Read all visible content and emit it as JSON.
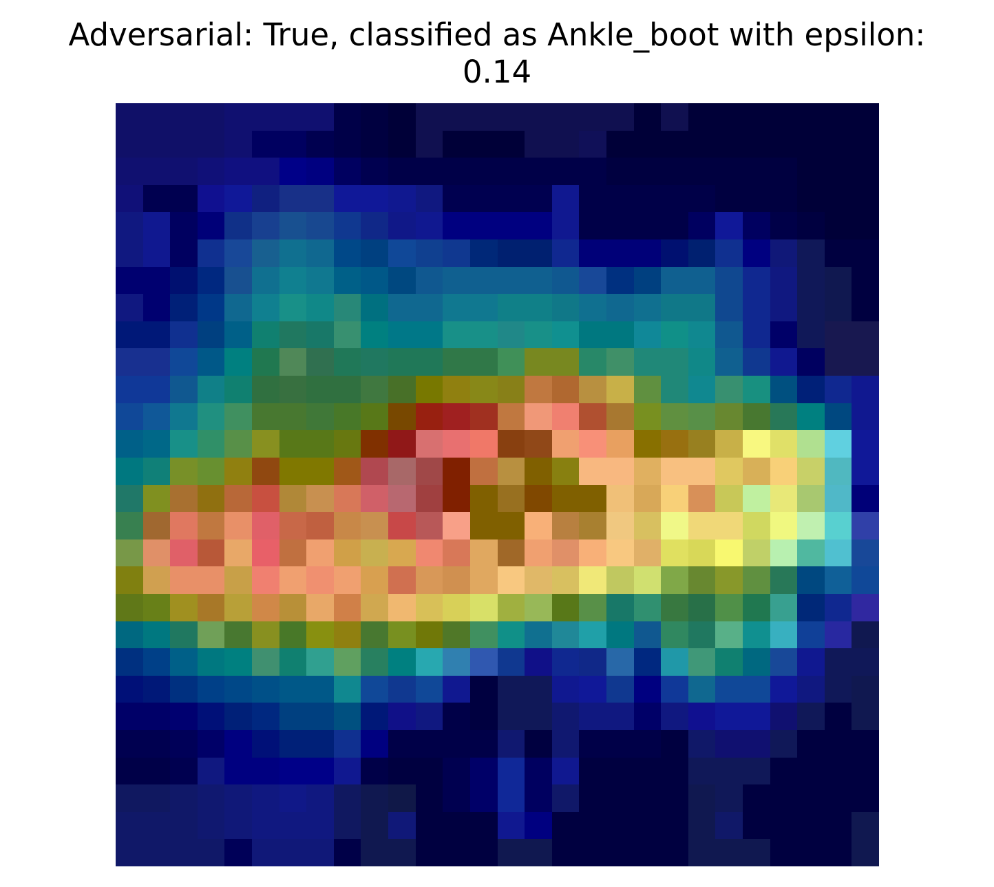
{
  "figure": {
    "title_line1": "Adversarial: True, classified as Ankle_boot with epsilon:",
    "title_line2": "0.14"
  },
  "chart_data": {
    "type": "heatmap",
    "title": "Adversarial: True, classified as Ankle_boot with epsilon: 0.14",
    "predicted_class": "Ankle_boot",
    "adversarial": true,
    "epsilon": 0.14,
    "rows": 28,
    "cols": 28,
    "axes": "off",
    "cells": [
      [
        "#101068",
        "#101068",
        "#101068",
        "#101068",
        "#101070",
        "#101070",
        "#101070",
        "#101070",
        "#000048",
        "#000040",
        "#000038",
        "#101050",
        "#101050",
        "#101050",
        "#101050",
        "#101050",
        "#101050",
        "#101050",
        "#101050",
        "#000038",
        "#101050",
        "#000038",
        "#000038",
        "#000038",
        "#000038",
        "#000038",
        "#000038",
        "#000038"
      ],
      [
        "#101068",
        "#101068",
        "#101068",
        "#101068",
        "#101070",
        "#000060",
        "#000060",
        "#000050",
        "#000048",
        "#000040",
        "#000038",
        "#101050",
        "#000038",
        "#000038",
        "#000038",
        "#101050",
        "#101050",
        "#101058",
        "#000038",
        "#000038",
        "#000038",
        "#000038",
        "#000038",
        "#000038",
        "#000038",
        "#000038",
        "#000038",
        "#000038"
      ],
      [
        "#101070",
        "#101070",
        "#101070",
        "#101078",
        "#101080",
        "#101080",
        "#000088",
        "#000080",
        "#000060",
        "#000050",
        "#000048",
        "#000048",
        "#000048",
        "#000048",
        "#000048",
        "#000048",
        "#000048",
        "#000048",
        "#000040",
        "#000040",
        "#000040",
        "#000040",
        "#000040",
        "#000040",
        "#000040",
        "#000038",
        "#000038",
        "#000038"
      ],
      [
        "#101078",
        "#000050",
        "#000050",
        "#101090",
        "#101898",
        "#102080",
        "#183088",
        "#183088",
        "#101898",
        "#101898",
        "#101890",
        "#101880",
        "#000050",
        "#000050",
        "#000050",
        "#000050",
        "#101890",
        "#000048",
        "#000048",
        "#000048",
        "#000048",
        "#000048",
        "#000040",
        "#000040",
        "#000040",
        "#000038",
        "#000038",
        "#000038"
      ],
      [
        "#101880",
        "#101890",
        "#000060",
        "#000078",
        "#103088",
        "#184090",
        "#185090",
        "#184890",
        "#103890",
        "#102888",
        "#101888",
        "#101890",
        "#000080",
        "#000080",
        "#000080",
        "#000080",
        "#101890",
        "#000048",
        "#000048",
        "#000048",
        "#000048",
        "#000060",
        "#101898",
        "#000060",
        "#000048",
        "#000040",
        "#000038",
        "#000038"
      ],
      [
        "#101880",
        "#101890",
        "#000060",
        "#103090",
        "#184898",
        "#186090",
        "#107090",
        "#106890",
        "#004888",
        "#004080",
        "#104898",
        "#104090",
        "#103890",
        "#002878",
        "#002070",
        "#002070",
        "#102890",
        "#000078",
        "#000078",
        "#000078",
        "#001070",
        "#002070",
        "#103090",
        "#000080",
        "#101878",
        "#101858",
        "#000040",
        "#000040"
      ],
      [
        "#000070",
        "#000070",
        "#001070",
        "#002880",
        "#185090",
        "#107090",
        "#108090",
        "#107890",
        "#006088",
        "#005888",
        "#004880",
        "#105890",
        "#106090",
        "#106090",
        "#106090",
        "#106090",
        "#105890",
        "#184898",
        "#003080",
        "#004080",
        "#106090",
        "#106090",
        "#104890",
        "#102890",
        "#101880",
        "#101858",
        "#101850",
        "#000040"
      ],
      [
        "#101880",
        "#000070",
        "#002078",
        "#003888",
        "#106890",
        "#108090",
        "#189088",
        "#108888",
        "#288878",
        "#007080",
        "#106890",
        "#106890",
        "#107890",
        "#107890",
        "#108088",
        "#108088",
        "#107888",
        "#107090",
        "#106890",
        "#107090",
        "#107888",
        "#107888",
        "#104890",
        "#102890",
        "#101880",
        "#101858",
        "#101850",
        "#000040"
      ],
      [
        "#001878",
        "#001878",
        "#103090",
        "#004080",
        "#006088",
        "#108070",
        "#207860",
        "#187868",
        "#389070",
        "#008080",
        "#007888",
        "#007888",
        "#189088",
        "#189088",
        "#208888",
        "#189088",
        "#109090",
        "#007880",
        "#007880",
        "#108898",
        "#109088",
        "#108890",
        "#105890",
        "#102890",
        "#000068",
        "#101858",
        "#181850",
        "#181850"
      ],
      [
        "#183090",
        "#183090",
        "#104898",
        "#005888",
        "#008080",
        "#207850",
        "#508858",
        "#307050",
        "#207858",
        "#207860",
        "#207858",
        "#207858",
        "#307848",
        "#307848",
        "#409058",
        "#788820",
        "#788820",
        "#288868",
        "#409068",
        "#208878",
        "#208878",
        "#108888",
        "#106090",
        "#103890",
        "#101890",
        "#000060",
        "#181850",
        "#181850"
      ],
      [
        "#103898",
        "#103898",
        "#105890",
        "#108088",
        "#108070",
        "#307040",
        "#387040",
        "#307040",
        "#307040",
        "#407840",
        "#487028",
        "#787800",
        "#908010",
        "#888818",
        "#888018",
        "#c07840",
        "#b06830",
        "#b89040",
        "#c8b048",
        "#609040",
        "#208878",
        "#108890",
        "#389070",
        "#189080",
        "#005080",
        "#002078",
        "#102890",
        "#101890"
      ],
      [
        "#104898",
        "#105898",
        "#107890",
        "#209080",
        "#409060",
        "#487830",
        "#487830",
        "#407838",
        "#487828",
        "#587818",
        "#784800",
        "#982010",
        "#a02020",
        "#a03020",
        "#c07840",
        "#f09878",
        "#f08070",
        "#b05030",
        "#a87830",
        "#789020",
        "#609040",
        "#589048",
        "#688830",
        "#487830",
        "#287858",
        "#008080",
        "#004880",
        "#101890"
      ],
      [
        "#006088",
        "#006888",
        "#189088",
        "#309068",
        "#589048",
        "#889020",
        "#587818",
        "#587818",
        "#687810",
        "#803000",
        "#901818",
        "#d87070",
        "#e87070",
        "#f07868",
        "#884010",
        "#904818",
        "#f0a070",
        "#f89078",
        "#e8a060",
        "#887000",
        "#987010",
        "#988020",
        "#c8b048",
        "#f8f880",
        "#e0e068",
        "#b0e090",
        "#60d0e0",
        "#101898"
      ],
      [
        "#007880",
        "#108078",
        "#789028",
        "#689030",
        "#908010",
        "#904810",
        "#807800",
        "#807800",
        "#a05818",
        "#b04850",
        "#a86868",
        "#a04848",
        "#802000",
        "#c07040",
        "#b89040",
        "#806000",
        "#888010",
        "#f8b880",
        "#f8b880",
        "#e0b060",
        "#f8c080",
        "#f8c080",
        "#e0c860",
        "#d8b058",
        "#f8d078",
        "#c8d068",
        "#50b8c0",
        "#101898"
      ],
      [
        "#207868",
        "#809020",
        "#a87030",
        "#907010",
        "#b86838",
        "#c85040",
        "#b08838",
        "#c89050",
        "#d87858",
        "#d06068",
        "#b86870",
        "#a04040",
        "#802000",
        "#806000",
        "#987020",
        "#804800",
        "#806000",
        "#806000",
        "#f0c078",
        "#d8a858",
        "#f8d078",
        "#d89058",
        "#c8c858",
        "#c0f0a0",
        "#e8e878",
        "#a8c870",
        "#50b8c8",
        "#000078"
      ],
      [
        "#388050",
        "#a06830",
        "#e07860",
        "#c07840",
        "#e89068",
        "#e06068",
        "#c86848",
        "#c06040",
        "#c88848",
        "#c89050",
        "#c84848",
        "#b85858",
        "#f8a088",
        "#806000",
        "#806000",
        "#f8b078",
        "#b88040",
        "#a88030",
        "#f0c880",
        "#d8c060",
        "#f0f888",
        "#f0d878",
        "#f0d878",
        "#d0d860",
        "#f0f880",
        "#c0f0b0",
        "#58d0d0",
        "#3040a8"
      ],
      [
        "#789848",
        "#e09068",
        "#e06068",
        "#b85838",
        "#e8a868",
        "#e86068",
        "#c07040",
        "#f0a070",
        "#d0a048",
        "#c8b050",
        "#d8a850",
        "#f08870",
        "#d87858",
        "#e0a860",
        "#a06828",
        "#f0a070",
        "#e09068",
        "#f8b078",
        "#f8c880",
        "#e0b068",
        "#e0e060",
        "#d8d858",
        "#f8f870",
        "#c0d068",
        "#b8f0b0",
        "#50b8a0",
        "#50c0d0",
        "#184898"
      ],
      [
        "#808010",
        "#d0a050",
        "#e89068",
        "#e89068",
        "#c8a048",
        "#f08070",
        "#f0a070",
        "#f09070",
        "#f0a070",
        "#d8a050",
        "#d07050",
        "#d89858",
        "#d09050",
        "#e0a860",
        "#f8c880",
        "#e0b868",
        "#d8c060",
        "#f0e878",
        "#c0c860",
        "#d0e070",
        "#80a848",
        "#688830",
        "#88982a",
        "#609040",
        "#287858",
        "#004880",
        "#106098",
        "#104898"
      ],
      [
        "#607818",
        "#688018",
        "#a09020",
        "#a87828",
        "#b8a038",
        "#d08848",
        "#b89038",
        "#e8a868",
        "#d08048",
        "#d0a850",
        "#f0b870",
        "#d8c058",
        "#d8d058",
        "#d8e068",
        "#a0b040",
        "#98b858",
        "#587818",
        "#589048",
        "#187868",
        "#309070",
        "#387840",
        "#287048",
        "#509048",
        "#207850",
        "#38a090",
        "#002878",
        "#102890",
        "#3028a0"
      ],
      [
        "#006880",
        "#007880",
        "#207860",
        "#70a058",
        "#487830",
        "#889020",
        "#487828",
        "#889010",
        "#908010",
        "#487830",
        "#789020",
        "#707808",
        "#507828",
        "#409060",
        "#109088",
        "#107090",
        "#208898",
        "#20a0a8",
        "#007880",
        "#105890",
        "#308860",
        "#207860",
        "#58b088",
        "#109090",
        "#38b0c0",
        "#104098",
        "#2828a0",
        "#101850"
      ],
      [
        "#003080",
        "#004088",
        "#006088",
        "#007880",
        "#008080",
        "#409070",
        "#108070",
        "#30a090",
        "#60a060",
        "#288060",
        "#008080",
        "#28a8b0",
        "#3080b0",
        "#3058b0",
        "#103890",
        "#101088",
        "#102890",
        "#102888",
        "#2868a8",
        "#002880",
        "#2098a8",
        "#409878",
        "#108070",
        "#006880",
        "#184898",
        "#101890",
        "#101858",
        "#101858"
      ],
      [
        "#001078",
        "#001878",
        "#003080",
        "#004088",
        "#004888",
        "#005088",
        "#005888",
        "#005888",
        "#108890",
        "#104898",
        "#103890",
        "#104898",
        "#101890",
        "#000040",
        "#101858",
        "#101858",
        "#101890",
        "#101898",
        "#103890",
        "#000080",
        "#103898",
        "#106890",
        "#104898",
        "#104898",
        "#101898",
        "#101880",
        "#101858",
        "#101850"
      ],
      [
        "#000068",
        "#000068",
        "#000070",
        "#001078",
        "#002078",
        "#002880",
        "#004080",
        "#004080",
        "#005080",
        "#001878",
        "#101088",
        "#101880",
        "#000048",
        "#000040",
        "#101858",
        "#101858",
        "#101870",
        "#101880",
        "#101880",
        "#000068",
        "#101880",
        "#101090",
        "#101898",
        "#101898",
        "#101070",
        "#101858",
        "#000040",
        "#101850"
      ],
      [
        "#000050",
        "#000050",
        "#000058",
        "#000068",
        "#000080",
        "#001078",
        "#002078",
        "#002078",
        "#103090",
        "#000080",
        "#000048",
        "#000048",
        "#000048",
        "#000048",
        "#101870",
        "#000040",
        "#101870",
        "#000048",
        "#000048",
        "#000048",
        "#000040",
        "#101868",
        "#101070",
        "#101070",
        "#101858",
        "#000040",
        "#000040",
        "#000040"
      ],
      [
        "#000048",
        "#000048",
        "#000050",
        "#101880",
        "#000080",
        "#000080",
        "#000088",
        "#000088",
        "#101890",
        "#000048",
        "#000040",
        "#000040",
        "#000050",
        "#000068",
        "#102898",
        "#000060",
        "#101890",
        "#000040",
        "#000040",
        "#000040",
        "#000040",
        "#101858",
        "#101858",
        "#101858",
        "#000040",
        "#000040",
        "#000040",
        "#000040"
      ],
      [
        "#101860",
        "#101860",
        "#101868",
        "#101870",
        "#101878",
        "#101880",
        "#101888",
        "#101880",
        "#101860",
        "#101850",
        "#101848",
        "#000040",
        "#000050",
        "#000068",
        "#102898",
        "#000060",
        "#101868",
        "#000040",
        "#000040",
        "#000040",
        "#000040",
        "#101850",
        "#101858",
        "#000040",
        "#000040",
        "#000040",
        "#000040",
        "#000040"
      ],
      [
        "#101868",
        "#101868",
        "#101868",
        "#101870",
        "#101878",
        "#101880",
        "#101880",
        "#101880",
        "#101860",
        "#101850",
        "#101878",
        "#000040",
        "#000040",
        "#000040",
        "#101890",
        "#000080",
        "#000040",
        "#000040",
        "#000040",
        "#000040",
        "#000040",
        "#101850",
        "#101868",
        "#000040",
        "#000040",
        "#000040",
        "#000040",
        "#101850"
      ],
      [
        "#101868",
        "#101868",
        "#101868",
        "#101868",
        "#000058",
        "#101878",
        "#101878",
        "#101878",
        "#000048",
        "#101850",
        "#101850",
        "#000040",
        "#000040",
        "#000040",
        "#101850",
        "#101850",
        "#000040",
        "#000040",
        "#000040",
        "#000040",
        "#000040",
        "#101850",
        "#101850",
        "#101850",
        "#000040",
        "#000040",
        "#000040",
        "#101850"
      ]
    ]
  }
}
